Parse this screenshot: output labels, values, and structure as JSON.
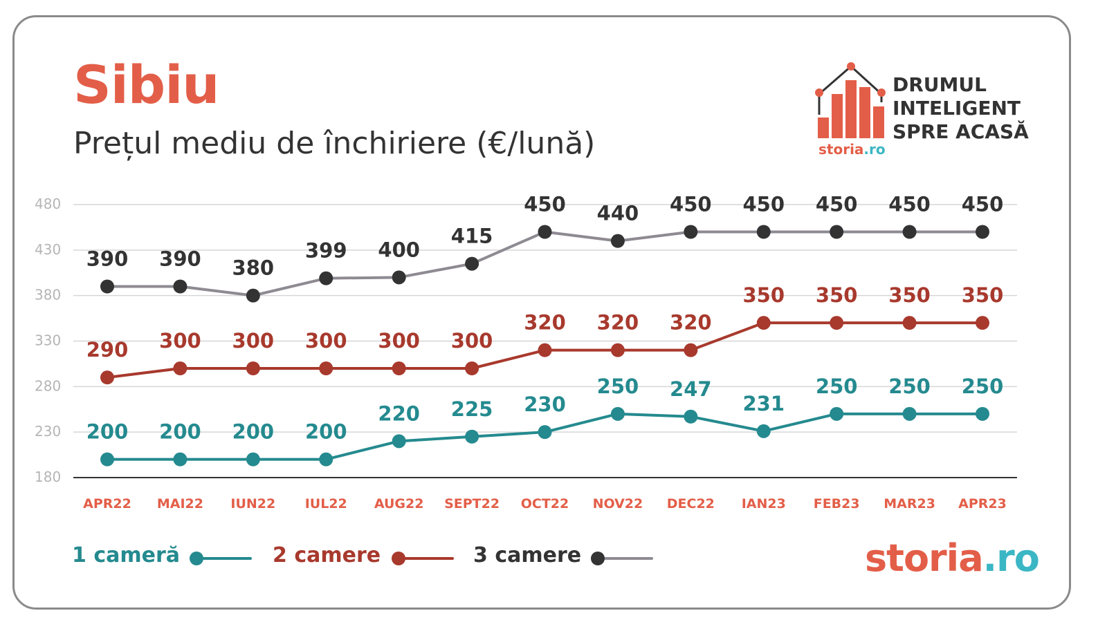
{
  "header": {
    "title": "Sibiu",
    "subtitle": "Prețul mediu de închiriere (€/lună)"
  },
  "brand": {
    "tagline_lines": [
      "DRUMUL",
      "INTELIGENT",
      "SPRE ACASĂ"
    ],
    "logo_small_main": "storia",
    "logo_small_tld": ".ro",
    "logo_big_main": "storia",
    "logo_big_tld": ".ro",
    "icon": "house-bar-chart-icon"
  },
  "colors": {
    "accent": "#e35e48",
    "one_room": "#248a8f",
    "two_rooms": "#a8392d",
    "three_rooms_line": "#8e8a92",
    "three_rooms_point": "#333333",
    "three_rooms_label": "#333333",
    "month_labels": "#e35e48",
    "ytick": "#b5b5b5",
    "grid": "#d6d6d6",
    "axis": "#333333",
    "brand_tld": "#3bb6c4"
  },
  "chart_data": {
    "type": "line",
    "categories": [
      "APR22",
      "MAI22",
      "IUN22",
      "IUL22",
      "AUG22",
      "SEPT22",
      "OCT22",
      "NOV22",
      "DEC22",
      "IAN23",
      "FEB23",
      "MAR23",
      "APR23"
    ],
    "yticks": [
      180,
      230,
      280,
      330,
      380,
      430,
      480
    ],
    "ylim": [
      180,
      480
    ],
    "grid": true,
    "legend_position": "bottom-left",
    "series": [
      {
        "name": "1 cameră",
        "key": "one_room",
        "values": [
          200,
          200,
          200,
          200,
          220,
          225,
          230,
          250,
          247,
          231,
          250,
          250,
          250
        ]
      },
      {
        "name": "2 camere",
        "key": "two_rooms",
        "values": [
          290,
          300,
          300,
          300,
          300,
          300,
          320,
          320,
          320,
          350,
          350,
          350,
          350
        ]
      },
      {
        "name": "3 camere",
        "key": "three_rooms",
        "values": [
          390,
          390,
          380,
          399,
          400,
          415,
          450,
          440,
          450,
          450,
          450,
          450,
          450
        ]
      }
    ]
  }
}
